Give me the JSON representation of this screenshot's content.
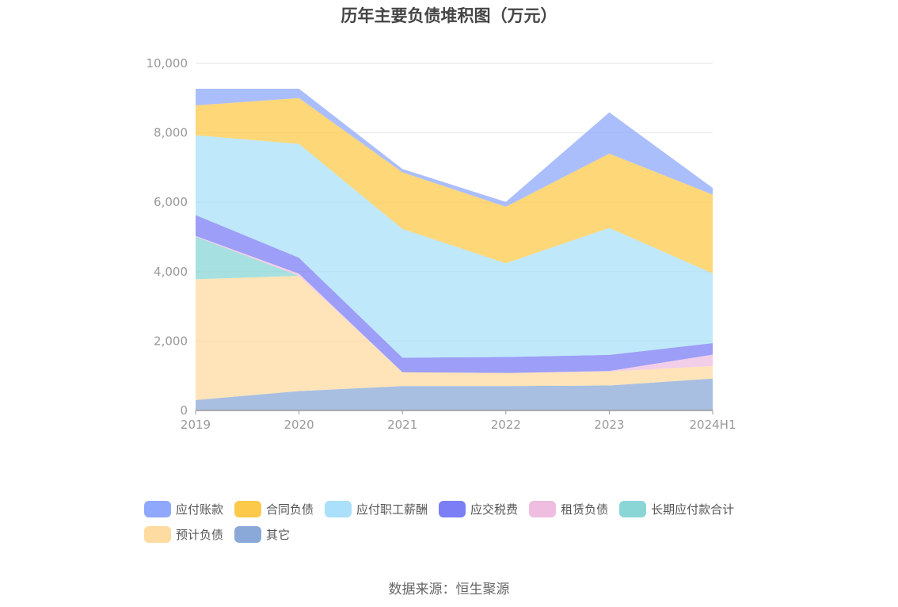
{
  "title": "历年主要负债堆积图（万元）",
  "source": "数据来源：恒生聚源",
  "colors": {
    "应付账款": "#8fa8fb",
    "合同负债": "#fdc94b",
    "应付职工薪酬": "#aae0fa",
    "应交税费": "#7b7ef4",
    "租赁负债": "#efbde0",
    "长期应付款合计": "#8ad6d6",
    "预计负债": "#fedba0",
    "其它": "#8ba9d8"
  },
  "chart_data": {
    "type": "area",
    "stacked": true,
    "title": "历年主要负债堆积图（万元）",
    "categories": [
      "2019",
      "2020",
      "2021",
      "2022",
      "2023",
      "2024H1"
    ],
    "ylim": [
      0,
      10000
    ],
    "yticks": [
      "0",
      "2,000",
      "4,000",
      "6,000",
      "8,000",
      "10,000"
    ],
    "grid": true,
    "legend_position": "bottom",
    "series": [
      {
        "name": "其它",
        "values": [
          300,
          560,
          700,
          700,
          720,
          920
        ]
      },
      {
        "name": "预计负债",
        "values": [
          3480,
          3320,
          400,
          380,
          400,
          360
        ]
      },
      {
        "name": "长期应付款合计",
        "values": [
          1230,
          0,
          0,
          0,
          0,
          0
        ]
      },
      {
        "name": "租赁负债",
        "values": [
          20,
          60,
          0,
          0,
          20,
          330
        ]
      },
      {
        "name": "应交税费",
        "values": [
          600,
          460,
          420,
          460,
          460,
          330
        ]
      },
      {
        "name": "应付职工薪酬",
        "values": [
          2300,
          3280,
          3710,
          2700,
          3660,
          2010
        ]
      },
      {
        "name": "合同负债",
        "values": [
          860,
          1320,
          1630,
          1630,
          2140,
          2270
        ]
      },
      {
        "name": "应付账款",
        "values": [
          480,
          270,
          100,
          140,
          1190,
          190
        ]
      }
    ]
  },
  "legend": {
    "row1": [
      "应付账款",
      "合同负债",
      "应付职工薪酬",
      "应交税费",
      "租赁负债",
      "长期应付款合计"
    ],
    "row2": [
      "预计负债",
      "其它"
    ]
  }
}
